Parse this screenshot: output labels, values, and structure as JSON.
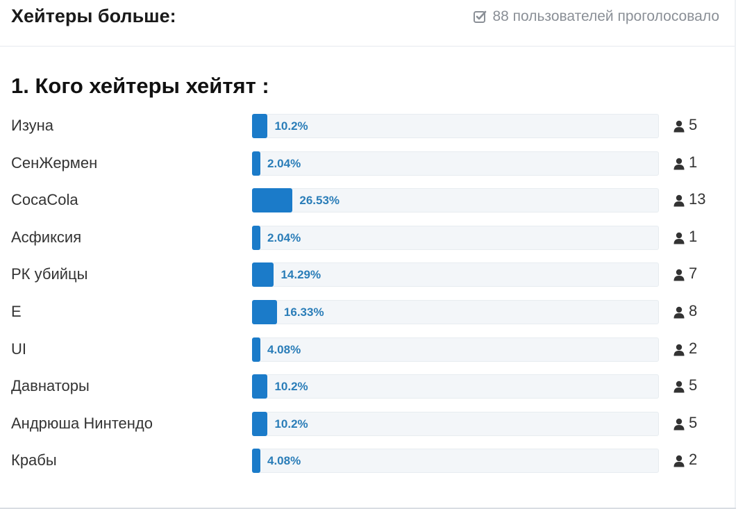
{
  "header": {
    "title": "Хейтеры больше:",
    "voters_text": "88 пользователей проголосовало",
    "voters_icon": "check-square-icon"
  },
  "question": "1. Кого хейтеры хейтят :",
  "accent_color": "#1b7bc9",
  "options": [
    {
      "label": "Изуна",
      "percent": 10.2,
      "percent_text": "10.2%",
      "votes": "5"
    },
    {
      "label": "СенЖермен",
      "percent": 2.04,
      "percent_text": "2.04%",
      "votes": "1"
    },
    {
      "label": "CocaCola",
      "percent": 26.53,
      "percent_text": "26.53%",
      "votes": "13"
    },
    {
      "label": "Асфиксия",
      "percent": 2.04,
      "percent_text": "2.04%",
      "votes": "1"
    },
    {
      "label": "РК убийцы",
      "percent": 14.29,
      "percent_text": "14.29%",
      "votes": "7"
    },
    {
      "label": "E",
      "percent": 16.33,
      "percent_text": "16.33%",
      "votes": "8"
    },
    {
      "label": "UI",
      "percent": 4.08,
      "percent_text": "4.08%",
      "votes": "2"
    },
    {
      "label": "Давнаторы",
      "percent": 10.2,
      "percent_text": "10.2%",
      "votes": "5"
    },
    {
      "label": "Андрюша Нинтендо",
      "percent": 10.2,
      "percent_text": "10.2%",
      "votes": "5"
    },
    {
      "label": "Крабы",
      "percent": 4.08,
      "percent_text": "4.08%",
      "votes": "2"
    }
  ]
}
